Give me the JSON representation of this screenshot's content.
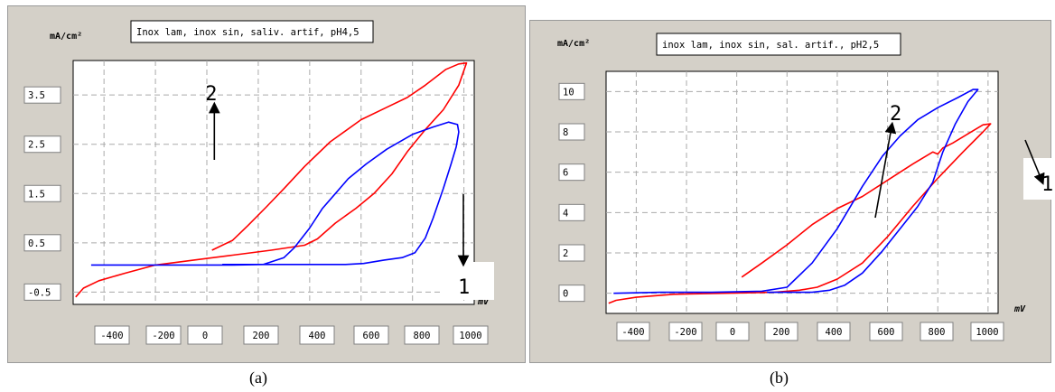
{
  "chart_data": [
    {
      "type": "line",
      "title": "Inox lam, inox sin, saliv. artif, pH4,5",
      "ylabel": "mA/cm²",
      "xlabel": "mV",
      "xlim": [
        -520,
        1040
      ],
      "ylim": [
        -0.75,
        4.2
      ],
      "x_ticks": [
        "-400",
        "-200",
        "0",
        "200",
        "400",
        "600",
        "800",
        "1000"
      ],
      "y_ticks": [
        "3.5",
        "2.5",
        "1.5",
        "0.5",
        "-0.5"
      ],
      "y_tick_values": [
        3.5,
        2.5,
        1.5,
        0.5,
        -0.5
      ],
      "grid": true,
      "series": [
        {
          "color": "#ff0000",
          "points": [
            [
              -510,
              -0.6
            ],
            [
              -480,
              -0.42
            ],
            [
              -420,
              -0.27
            ],
            [
              -320,
              -0.12
            ],
            [
              -200,
              0.05
            ],
            [
              -50,
              0.15
            ],
            [
              100,
              0.25
            ],
            [
              250,
              0.35
            ],
            [
              380,
              0.45
            ],
            [
              430,
              0.58
            ],
            [
              500,
              0.9
            ],
            [
              580,
              1.2
            ],
            [
              650,
              1.5
            ],
            [
              720,
              1.9
            ],
            [
              780,
              2.35
            ],
            [
              850,
              2.8
            ],
            [
              920,
              3.2
            ],
            [
              980,
              3.7
            ],
            [
              1010,
              4.15
            ],
            [
              980,
              4.13
            ],
            [
              930,
              4.02
            ],
            [
              850,
              3.7
            ],
            [
              780,
              3.45
            ],
            [
              700,
              3.25
            ],
            [
              600,
              3.0
            ],
            [
              480,
              2.55
            ],
            [
              380,
              2.05
            ],
            [
              300,
              1.6
            ],
            [
              230,
              1.22
            ],
            [
              160,
              0.85
            ],
            [
              100,
              0.55
            ],
            [
              20,
              0.35
            ]
          ]
        },
        {
          "color": "#0000ff",
          "points": [
            [
              -450,
              0.05
            ],
            [
              -300,
              0.05
            ],
            [
              -100,
              0.05
            ],
            [
              100,
              0.05
            ],
            [
              220,
              0.06
            ],
            [
              300,
              0.2
            ],
            [
              340,
              0.4
            ],
            [
              400,
              0.8
            ],
            [
              450,
              1.2
            ],
            [
              500,
              1.5
            ],
            [
              550,
              1.8
            ],
            [
              620,
              2.1
            ],
            [
              700,
              2.4
            ],
            [
              800,
              2.7
            ],
            [
              880,
              2.85
            ],
            [
              940,
              2.95
            ],
            [
              975,
              2.9
            ],
            [
              980,
              2.75
            ],
            [
              970,
              2.45
            ],
            [
              950,
              2.1
            ],
            [
              920,
              1.6
            ],
            [
              880,
              1.0
            ],
            [
              850,
              0.6
            ],
            [
              810,
              0.3
            ],
            [
              760,
              0.2
            ],
            [
              690,
              0.15
            ],
            [
              610,
              0.08
            ],
            [
              540,
              0.06
            ],
            [
              400,
              0.06
            ],
            [
              200,
              0.06
            ],
            [
              60,
              0.06
            ]
          ]
        }
      ],
      "annotations": [
        {
          "label": "2",
          "data_x": 500,
          "data_y": 3.9,
          "arrow": "up"
        },
        {
          "label": "1",
          "data_x": 1015,
          "data_y": -0.2,
          "arrow": "down"
        }
      ]
    },
    {
      "type": "line",
      "title": "inox lam, inox sin, sal. artif., pH2,5",
      "ylabel": "mA/cm²",
      "xlabel": "mV",
      "xlim": [
        -520,
        1040
      ],
      "ylim": [
        -1.0,
        11.0
      ],
      "x_ticks": [
        "-400",
        "-200",
        "0",
        "200",
        "400",
        "600",
        "800",
        "1000"
      ],
      "y_ticks": [
        "10",
        "8",
        "6",
        "4",
        "2",
        "0"
      ],
      "y_tick_values": [
        10,
        8,
        6,
        4,
        2,
        0
      ],
      "grid": true,
      "series": [
        {
          "color": "#ff0000",
          "points": [
            [
              -510,
              -0.5
            ],
            [
              -480,
              -0.35
            ],
            [
              -400,
              -0.2
            ],
            [
              -250,
              -0.05
            ],
            [
              -50,
              0.0
            ],
            [
              150,
              0.05
            ],
            [
              250,
              0.15
            ],
            [
              320,
              0.3
            ],
            [
              400,
              0.7
            ],
            [
              500,
              1.5
            ],
            [
              600,
              2.8
            ],
            [
              700,
              4.3
            ],
            [
              800,
              5.7
            ],
            [
              900,
              7.0
            ],
            [
              980,
              8.0
            ],
            [
              1010,
              8.4
            ],
            [
              980,
              8.35
            ],
            [
              920,
              7.9
            ],
            [
              860,
              7.45
            ],
            [
              820,
              7.2
            ],
            [
              800,
              6.9
            ],
            [
              780,
              7.0
            ],
            [
              700,
              6.4
            ],
            [
              600,
              5.6
            ],
            [
              500,
              4.8
            ],
            [
              400,
              4.2
            ],
            [
              300,
              3.4
            ],
            [
              200,
              2.4
            ],
            [
              100,
              1.5
            ],
            [
              20,
              0.8
            ]
          ]
        },
        {
          "color": "#0000ff",
          "points": [
            [
              -490,
              0.0
            ],
            [
              -300,
              0.05
            ],
            [
              -100,
              0.05
            ],
            [
              100,
              0.1
            ],
            [
              200,
              0.3
            ],
            [
              300,
              1.5
            ],
            [
              400,
              3.2
            ],
            [
              500,
              5.3
            ],
            [
              580,
              6.8
            ],
            [
              650,
              7.8
            ],
            [
              720,
              8.6
            ],
            [
              800,
              9.2
            ],
            [
              880,
              9.7
            ],
            [
              940,
              10.1
            ],
            [
              960,
              10.1
            ],
            [
              920,
              9.5
            ],
            [
              870,
              8.4
            ],
            [
              820,
              7.0
            ],
            [
              780,
              5.5
            ],
            [
              720,
              4.3
            ],
            [
              650,
              3.2
            ],
            [
              580,
              2.1
            ],
            [
              500,
              1.0
            ],
            [
              430,
              0.4
            ],
            [
              370,
              0.15
            ],
            [
              300,
              0.05
            ],
            [
              200,
              0.05
            ],
            [
              120,
              0.05
            ]
          ]
        }
      ],
      "annotations": [
        {
          "label": "2",
          "data_x": 610,
          "data_y": 7.9,
          "arrow": "up-right"
        },
        {
          "label": "1",
          "data_x": 1100,
          "data_y": 5.6,
          "arrow": "down-right"
        }
      ]
    }
  ],
  "captions": [
    "(a)",
    "(b)"
  ]
}
